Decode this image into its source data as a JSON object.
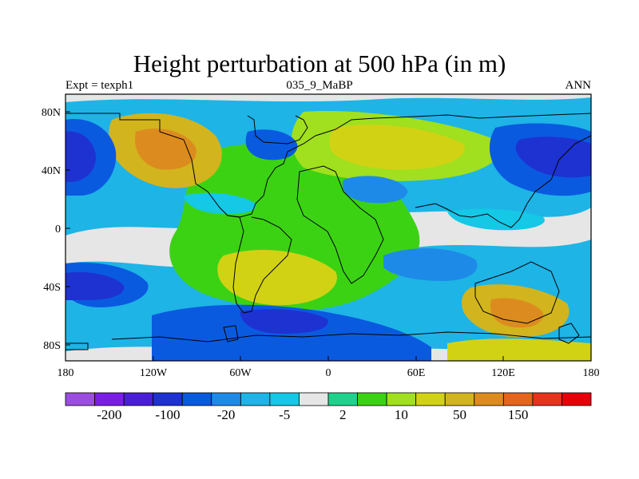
{
  "title": "Height perturbation at 500 hPa (in m)",
  "subtitle_left": "Expt = texph1",
  "subtitle_center": "035_9_MaBP",
  "subtitle_right": "ANN",
  "x_ticks": [
    "180",
    "120W",
    "60W",
    "0",
    "60E",
    "120E",
    "180"
  ],
  "y_ticks": [
    "80N",
    "40N",
    "0",
    "40S",
    "80S"
  ],
  "colorbar": {
    "colors": [
      "#9b4de0",
      "#7a1ee6",
      "#4a1ed8",
      "#1e32d2",
      "#0a5ae0",
      "#1e8ae8",
      "#1eb4e6",
      "#14c8e6",
      "#e6e6e6",
      "#1ed28c",
      "#3cd214",
      "#a0e01e",
      "#d2d214",
      "#d2b41e",
      "#dc8c1e",
      "#e6641e",
      "#e6321e",
      "#e6000a"
    ],
    "labels": [
      "-200",
      "-100",
      "-20",
      "-5",
      "2",
      "10",
      "50",
      "150"
    ]
  }
}
